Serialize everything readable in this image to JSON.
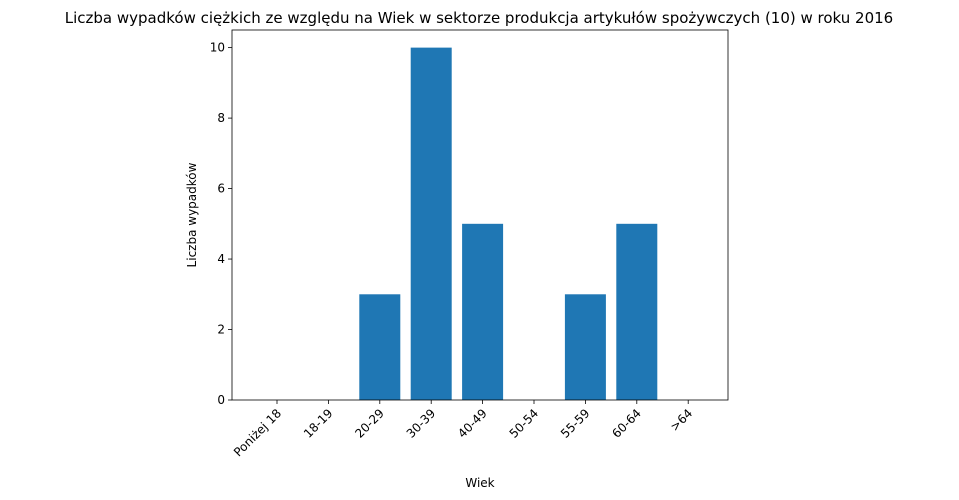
{
  "chart_data": {
    "type": "bar",
    "title": "Liczba wypadków ciężkich ze względu na Wiek w sektorze produkcja artykułów spożywczych  (10)   w roku 2016",
    "xlabel": "Wiek",
    "ylabel": "Liczba wypadków",
    "categories": [
      "Poniżej 18",
      "18-19",
      "20-29",
      "30-39",
      "40-49",
      "50-54",
      "55-59",
      "60-64",
      ">64"
    ],
    "values": [
      0,
      0,
      3,
      10,
      5,
      0,
      3,
      5,
      0
    ],
    "ylim": [
      0,
      10.5
    ],
    "yticks": [
      0,
      2,
      4,
      6,
      8,
      10
    ],
    "grid": false,
    "legend": "none",
    "bar_color": "#1f77b4"
  }
}
